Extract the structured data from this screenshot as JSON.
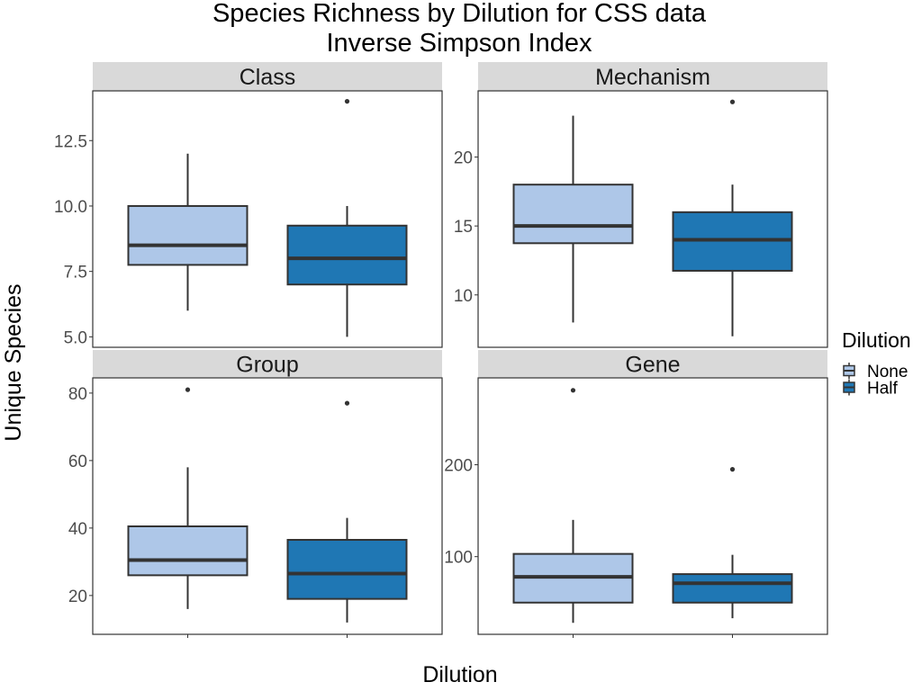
{
  "chart_data": {
    "type": "box",
    "title": "Species Richness by Dilution for CSS data",
    "subtitle": "Inverse Simpson Index",
    "xlabel": "Dilution",
    "ylabel": "Unique Species",
    "legend": {
      "title": "Dilution",
      "position": "right",
      "items": [
        {
          "label": "None",
          "color": "#aec7e8"
        },
        {
          "label": "Half",
          "color": "#1f77b4"
        }
      ]
    },
    "colors": {
      "box_border": "#333333",
      "strip_bg": "#d9d9d9",
      "panel_border": "#333333"
    },
    "grid": false,
    "facets": [
      {
        "name": "Class",
        "ylim": [
          4.6,
          14.4
        ],
        "yticks": [
          5.0,
          7.5,
          10.0,
          12.5
        ],
        "ytick_labels": [
          "5.0",
          "7.5",
          "10.0",
          "12.5"
        ],
        "boxes": [
          {
            "group": "None",
            "whisker_low": 6,
            "q1": 7.75,
            "median": 8.5,
            "q3": 10,
            "whisker_high": 12,
            "outliers": []
          },
          {
            "group": "Half",
            "whisker_low": 5,
            "q1": 7,
            "median": 8,
            "q3": 9.25,
            "whisker_high": 10,
            "outliers": [
              14
            ]
          }
        ]
      },
      {
        "name": "Mechanism",
        "ylim": [
          6.2,
          24.8
        ],
        "yticks": [
          10,
          15,
          20
        ],
        "ytick_labels": [
          "10",
          "15",
          "20"
        ],
        "boxes": [
          {
            "group": "None",
            "whisker_low": 8,
            "q1": 13.75,
            "median": 15,
            "q3": 18,
            "whisker_high": 23,
            "outliers": []
          },
          {
            "group": "Half",
            "whisker_low": 7,
            "q1": 11.75,
            "median": 14,
            "q3": 16,
            "whisker_high": 18,
            "outliers": [
              24
            ]
          }
        ]
      },
      {
        "name": "Group",
        "ylim": [
          8.5,
          84.5
        ],
        "yticks": [
          20,
          40,
          60,
          80
        ],
        "ytick_labels": [
          "20",
          "40",
          "60",
          "80"
        ],
        "boxes": [
          {
            "group": "None",
            "whisker_low": 16,
            "q1": 26,
            "median": 30.5,
            "q3": 40.5,
            "whisker_high": 58,
            "outliers": [
              81
            ]
          },
          {
            "group": "Half",
            "whisker_low": 12,
            "q1": 19,
            "median": 26.5,
            "q3": 36.5,
            "whisker_high": 43,
            "outliers": [
              77
            ]
          }
        ]
      },
      {
        "name": "Gene",
        "ylim": [
          15.5,
          294.5
        ],
        "yticks": [
          100,
          200
        ],
        "ytick_labels": [
          "100",
          "200"
        ],
        "boxes": [
          {
            "group": "None",
            "whisker_low": 28,
            "q1": 50,
            "median": 78,
            "q3": 103,
            "whisker_high": 140,
            "outliers": [
              281
            ]
          },
          {
            "group": "Half",
            "whisker_low": 33,
            "q1": 50,
            "median": 71,
            "q3": 81,
            "whisker_high": 102,
            "outliers": [
              195
            ]
          }
        ]
      }
    ]
  }
}
